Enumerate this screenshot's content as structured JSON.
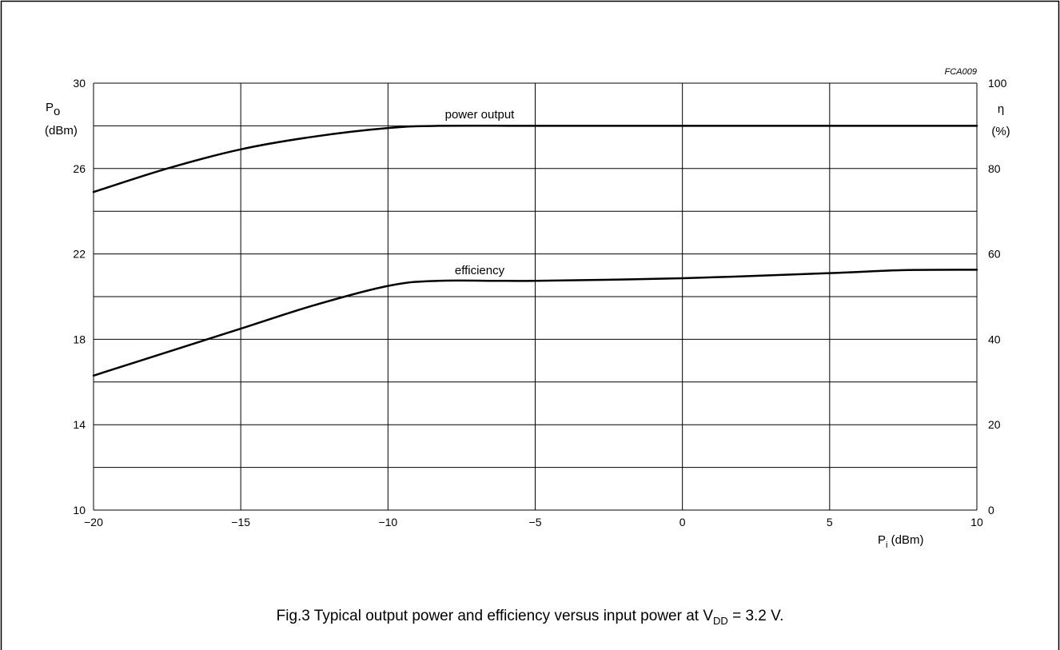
{
  "figure_code": "FCA009",
  "caption": {
    "prefix": "Fig.3  Typical output power and efficiency versus input power at V",
    "subscript": "DD",
    "suffix": " = 3.2 V."
  },
  "axes": {
    "left": {
      "symbol": "P",
      "subscript": "o",
      "unit": "(dBm)"
    },
    "right": {
      "symbol": "η",
      "unit": "(%)"
    },
    "bottom": {
      "symbol": "P",
      "subscript": "i",
      "unit": " (dBm)"
    }
  },
  "chart_data": {
    "type": "line",
    "title": "Fig.3  Typical output power and efficiency versus input power at VDD = 3.2 V.",
    "xlabel": "Pi (dBm)",
    "ylabel": "Po (dBm)",
    "y2label": "η (%)",
    "xlim": [
      -20,
      10
    ],
    "ylim": [
      10,
      30
    ],
    "y2lim": [
      0,
      100
    ],
    "xticks": [
      -20,
      -15,
      -10,
      -5,
      0,
      5,
      10
    ],
    "xtick_labels": [
      "−20",
      "−15",
      "−10",
      "−5",
      "0",
      "5",
      "10"
    ],
    "yticks": [
      10,
      14,
      18,
      22,
      26,
      30
    ],
    "y2ticks": [
      0,
      20,
      40,
      60,
      80,
      100
    ],
    "grid": true,
    "series": [
      {
        "name": "power output",
        "axis": "left",
        "x": [
          -20,
          -17.5,
          -15,
          -12.5,
          -10,
          -8.3,
          -5,
          0,
          5,
          10
        ],
        "y": [
          24.9,
          26.0,
          26.9,
          27.5,
          27.9,
          28.0,
          28.0,
          28.0,
          28.0,
          28.0
        ]
      },
      {
        "name": "efficiency",
        "axis": "right",
        "x": [
          -20,
          -17.5,
          -15,
          -12.5,
          -10,
          -8.3,
          -5,
          0,
          5,
          7.5,
          10
        ],
        "y": [
          31.5,
          37.0,
          42.5,
          48.0,
          52.5,
          53.7,
          53.7,
          54.3,
          55.5,
          56.2,
          56.3
        ]
      }
    ]
  }
}
